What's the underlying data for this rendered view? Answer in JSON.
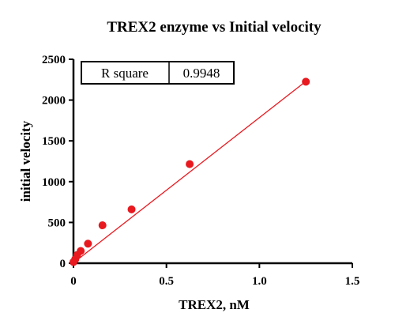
{
  "chart_data": {
    "type": "scatter",
    "title": "TREX2 enzyme vs Initial velocity",
    "xlabel": "TREX2, nM",
    "ylabel": "initial velocity",
    "xlim": [
      0,
      1.5
    ],
    "ylim": [
      0,
      2500
    ],
    "xticks": [
      0,
      0.5,
      1.0,
      1.5
    ],
    "xtick_labels": [
      "0",
      "0.5",
      "1.0",
      "1.5"
    ],
    "yticks": [
      0,
      500,
      1000,
      1500,
      2000,
      2500
    ],
    "ytick_labels": [
      "0",
      "500",
      "1000",
      "1500",
      "2000",
      "2500"
    ],
    "grid": false,
    "legend": "none",
    "point_color": "#e8191f",
    "line_color": "#e8191f",
    "series": [
      {
        "x": [
          0,
          0.0098,
          0.0195,
          0.039,
          0.078,
          0.156,
          0.3125,
          0.625,
          1.25
        ],
        "y": [
          15,
          50,
          100,
          150,
          240,
          465,
          660,
          1215,
          2225
        ]
      }
    ],
    "fit_line": {
      "x": [
        0,
        1.25
      ],
      "y": [
        5,
        2230
      ]
    },
    "stats_table": {
      "label": "R square",
      "value": "0.9948"
    }
  }
}
